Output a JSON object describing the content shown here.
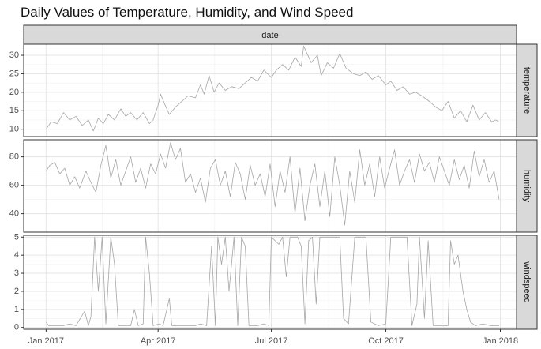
{
  "chart_data": {
    "type": "line",
    "title": "Daily Values of Temperature, Humidity, and Wind Speed",
    "facet_column_strip": "date",
    "grid": true,
    "line_color": "#a6a6a6",
    "strip_fill": "#d9d9d9",
    "x_ticks": [
      {
        "date": "2017-01-01",
        "label": "Jan 2017"
      },
      {
        "date": "2017-04-01",
        "label": "Apr 2017"
      },
      {
        "date": "2017-07-01",
        "label": "Jul 2017"
      },
      {
        "date": "2017-10-01",
        "label": "Oct 2017"
      },
      {
        "date": "2018-01-01",
        "label": "Jan 2018"
      }
    ],
    "x_range": [
      "2016-12-14",
      "2018-01-14"
    ],
    "panels": [
      {
        "strip": "temperature",
        "ylim": [
          8,
          33
        ],
        "yticks": [
          10,
          15,
          20,
          25,
          30
        ],
        "points": [
          [
            "2017-01-01",
            10.0
          ],
          [
            "2017-01-05",
            12.0
          ],
          [
            "2017-01-10",
            11.5
          ],
          [
            "2017-01-15",
            14.5
          ],
          [
            "2017-01-20",
            12.5
          ],
          [
            "2017-01-25",
            13.5
          ],
          [
            "2017-01-30",
            11.0
          ],
          [
            "2017-02-04",
            12.5
          ],
          [
            "2017-02-08",
            9.5
          ],
          [
            "2017-02-12",
            13.0
          ],
          [
            "2017-02-16",
            11.5
          ],
          [
            "2017-02-20",
            14.0
          ],
          [
            "2017-02-25",
            12.5
          ],
          [
            "2017-03-02",
            15.5
          ],
          [
            "2017-03-06",
            13.5
          ],
          [
            "2017-03-10",
            14.5
          ],
          [
            "2017-03-15",
            12.5
          ],
          [
            "2017-03-20",
            14.5
          ],
          [
            "2017-03-25",
            11.5
          ],
          [
            "2017-03-28",
            12.5
          ],
          [
            "2017-04-01",
            16.5
          ],
          [
            "2017-04-03",
            19.5
          ],
          [
            "2017-04-06",
            17.0
          ],
          [
            "2017-04-10",
            14.0
          ],
          [
            "2017-04-15",
            16.0
          ],
          [
            "2017-04-20",
            17.5
          ],
          [
            "2017-04-25",
            19.0
          ],
          [
            "2017-05-01",
            18.5
          ],
          [
            "2017-05-05",
            22.0
          ],
          [
            "2017-05-08",
            19.5
          ],
          [
            "2017-05-12",
            24.5
          ],
          [
            "2017-05-16",
            20.0
          ],
          [
            "2017-05-20",
            22.5
          ],
          [
            "2017-05-25",
            20.5
          ],
          [
            "2017-05-30",
            21.5
          ],
          [
            "2017-06-05",
            21.0
          ],
          [
            "2017-06-10",
            22.5
          ],
          [
            "2017-06-15",
            24.0
          ],
          [
            "2017-06-20",
            23.0
          ],
          [
            "2017-06-25",
            26.0
          ],
          [
            "2017-07-01",
            24.0
          ],
          [
            "2017-07-05",
            26.0
          ],
          [
            "2017-07-10",
            27.5
          ],
          [
            "2017-07-15",
            26.0
          ],
          [
            "2017-07-20",
            29.5
          ],
          [
            "2017-07-25",
            27.0
          ],
          [
            "2017-07-27",
            32.5
          ],
          [
            "2017-08-02",
            28.0
          ],
          [
            "2017-08-07",
            30.0
          ],
          [
            "2017-08-10",
            24.5
          ],
          [
            "2017-08-15",
            28.0
          ],
          [
            "2017-08-20",
            26.5
          ],
          [
            "2017-08-25",
            30.5
          ],
          [
            "2017-08-30",
            26.5
          ],
          [
            "2017-09-05",
            25.0
          ],
          [
            "2017-09-10",
            24.5
          ],
          [
            "2017-09-15",
            25.5
          ],
          [
            "2017-09-20",
            23.5
          ],
          [
            "2017-09-25",
            24.5
          ],
          [
            "2017-10-01",
            22.0
          ],
          [
            "2017-10-05",
            23.0
          ],
          [
            "2017-10-10",
            20.5
          ],
          [
            "2017-10-15",
            21.5
          ],
          [
            "2017-10-20",
            19.5
          ],
          [
            "2017-10-25",
            20.0
          ],
          [
            "2017-10-30",
            19.0
          ],
          [
            "2017-11-05",
            17.5
          ],
          [
            "2017-11-10",
            16.0
          ],
          [
            "2017-11-15",
            15.0
          ],
          [
            "2017-11-20",
            17.5
          ],
          [
            "2017-11-25",
            13.0
          ],
          [
            "2017-11-30",
            15.0
          ],
          [
            "2017-12-05",
            12.0
          ],
          [
            "2017-12-10",
            16.5
          ],
          [
            "2017-12-15",
            12.5
          ],
          [
            "2017-12-20",
            14.5
          ],
          [
            "2017-12-25",
            12.0
          ],
          [
            "2017-12-28",
            12.5
          ],
          [
            "2017-12-31",
            12.0
          ]
        ]
      },
      {
        "strip": "humidity",
        "ylim": [
          27,
          92
        ],
        "yticks": [
          40,
          60,
          80
        ],
        "points": [
          [
            "2017-01-01",
            70
          ],
          [
            "2017-01-04",
            74
          ],
          [
            "2017-01-08",
            76
          ],
          [
            "2017-01-12",
            68
          ],
          [
            "2017-01-16",
            72
          ],
          [
            "2017-01-20",
            60
          ],
          [
            "2017-01-24",
            66
          ],
          [
            "2017-01-28",
            58
          ],
          [
            "2017-02-02",
            70
          ],
          [
            "2017-02-06",
            62
          ],
          [
            "2017-02-10",
            55
          ],
          [
            "2017-02-14",
            74
          ],
          [
            "2017-02-18",
            88
          ],
          [
            "2017-02-22",
            65
          ],
          [
            "2017-02-26",
            78
          ],
          [
            "2017-03-02",
            60
          ],
          [
            "2017-03-06",
            70
          ],
          [
            "2017-03-10",
            80
          ],
          [
            "2017-03-14",
            62
          ],
          [
            "2017-03-18",
            72
          ],
          [
            "2017-03-22",
            58
          ],
          [
            "2017-03-26",
            75
          ],
          [
            "2017-03-30",
            68
          ],
          [
            "2017-04-03",
            82
          ],
          [
            "2017-04-07",
            72
          ],
          [
            "2017-04-11",
            90
          ],
          [
            "2017-04-15",
            78
          ],
          [
            "2017-04-19",
            86
          ],
          [
            "2017-04-23",
            62
          ],
          [
            "2017-04-27",
            68
          ],
          [
            "2017-05-01",
            55
          ],
          [
            "2017-05-05",
            65
          ],
          [
            "2017-05-09",
            48
          ],
          [
            "2017-05-13",
            72
          ],
          [
            "2017-05-17",
            78
          ],
          [
            "2017-05-21",
            60
          ],
          [
            "2017-05-25",
            70
          ],
          [
            "2017-05-29",
            52
          ],
          [
            "2017-06-02",
            76
          ],
          [
            "2017-06-06",
            68
          ],
          [
            "2017-06-10",
            50
          ],
          [
            "2017-06-14",
            74
          ],
          [
            "2017-06-18",
            60
          ],
          [
            "2017-06-22",
            68
          ],
          [
            "2017-06-26",
            52
          ],
          [
            "2017-06-30",
            75
          ],
          [
            "2017-07-04",
            45
          ],
          [
            "2017-07-08",
            70
          ],
          [
            "2017-07-12",
            55
          ],
          [
            "2017-07-16",
            80
          ],
          [
            "2017-07-20",
            40
          ],
          [
            "2017-07-24",
            72
          ],
          [
            "2017-07-28",
            35
          ],
          [
            "2017-08-01",
            60
          ],
          [
            "2017-08-05",
            75
          ],
          [
            "2017-08-09",
            45
          ],
          [
            "2017-08-13",
            70
          ],
          [
            "2017-08-17",
            38
          ],
          [
            "2017-08-21",
            80
          ],
          [
            "2017-08-25",
            60
          ],
          [
            "2017-08-29",
            32
          ],
          [
            "2017-09-02",
            70
          ],
          [
            "2017-09-06",
            48
          ],
          [
            "2017-09-10",
            85
          ],
          [
            "2017-09-14",
            60
          ],
          [
            "2017-09-18",
            75
          ],
          [
            "2017-09-22",
            52
          ],
          [
            "2017-09-26",
            80
          ],
          [
            "2017-09-30",
            58
          ],
          [
            "2017-10-04",
            72
          ],
          [
            "2017-10-08",
            85
          ],
          [
            "2017-10-12",
            60
          ],
          [
            "2017-10-16",
            70
          ],
          [
            "2017-10-20",
            78
          ],
          [
            "2017-10-24",
            62
          ],
          [
            "2017-10-28",
            82
          ],
          [
            "2017-11-01",
            70
          ],
          [
            "2017-11-05",
            76
          ],
          [
            "2017-11-09",
            62
          ],
          [
            "2017-11-13",
            80
          ],
          [
            "2017-11-17",
            70
          ],
          [
            "2017-11-21",
            60
          ],
          [
            "2017-11-25",
            78
          ],
          [
            "2017-11-29",
            64
          ],
          [
            "2017-12-03",
            74
          ],
          [
            "2017-12-07",
            58
          ],
          [
            "2017-12-11",
            84
          ],
          [
            "2017-12-15",
            66
          ],
          [
            "2017-12-19",
            78
          ],
          [
            "2017-12-23",
            62
          ],
          [
            "2017-12-27",
            70
          ],
          [
            "2017-12-31",
            50
          ]
        ]
      },
      {
        "strip": "windspeed",
        "ylim": [
          -0.1,
          5.1
        ],
        "yticks": [
          0,
          1,
          2,
          3,
          4,
          5
        ],
        "points": [
          [
            "2017-01-01",
            0.3
          ],
          [
            "2017-01-03",
            0.1
          ],
          [
            "2017-01-15",
            0.1
          ],
          [
            "2017-01-20",
            0.2
          ],
          [
            "2017-01-25",
            0.1
          ],
          [
            "2017-02-01",
            0.9
          ],
          [
            "2017-02-04",
            0.1
          ],
          [
            "2017-02-06",
            0.6
          ],
          [
            "2017-02-09",
            5.0
          ],
          [
            "2017-02-12",
            2.0
          ],
          [
            "2017-02-15",
            5.0
          ],
          [
            "2017-02-18",
            0.2
          ],
          [
            "2017-02-22",
            5.0
          ],
          [
            "2017-02-25",
            3.5
          ],
          [
            "2017-02-28",
            0.1
          ],
          [
            "2017-03-10",
            0.1
          ],
          [
            "2017-03-13",
            1.0
          ],
          [
            "2017-03-16",
            0.1
          ],
          [
            "2017-03-20",
            0.2
          ],
          [
            "2017-03-22",
            5.0
          ],
          [
            "2017-03-25",
            3.0
          ],
          [
            "2017-03-28",
            0.1
          ],
          [
            "2017-04-02",
            0.2
          ],
          [
            "2017-04-05",
            0.1
          ],
          [
            "2017-04-10",
            1.6
          ],
          [
            "2017-04-12",
            0.1
          ],
          [
            "2017-05-01",
            0.1
          ],
          [
            "2017-05-05",
            0.2
          ],
          [
            "2017-05-10",
            0.1
          ],
          [
            "2017-05-14",
            4.5
          ],
          [
            "2017-05-17",
            0.1
          ],
          [
            "2017-05-19",
            5.0
          ],
          [
            "2017-05-22",
            3.5
          ],
          [
            "2017-05-25",
            5.0
          ],
          [
            "2017-05-28",
            2.0
          ],
          [
            "2017-06-01",
            5.0
          ],
          [
            "2017-06-04",
            0.1
          ],
          [
            "2017-06-07",
            5.0
          ],
          [
            "2017-06-10",
            4.5
          ],
          [
            "2017-06-13",
            0.1
          ],
          [
            "2017-06-20",
            0.1
          ],
          [
            "2017-06-25",
            0.2
          ],
          [
            "2017-06-29",
            0.1
          ],
          [
            "2017-07-01",
            5.0
          ],
          [
            "2017-07-07",
            4.6
          ],
          [
            "2017-07-10",
            5.0
          ],
          [
            "2017-07-13",
            2.8
          ],
          [
            "2017-07-16",
            5.0
          ],
          [
            "2017-07-22",
            5.0
          ],
          [
            "2017-07-25",
            4.5
          ],
          [
            "2017-07-28",
            0.2
          ],
          [
            "2017-07-31",
            4.8
          ],
          [
            "2017-08-03",
            5.0
          ],
          [
            "2017-08-06",
            1.3
          ],
          [
            "2017-08-09",
            5.0
          ],
          [
            "2017-08-25",
            5.0
          ],
          [
            "2017-08-28",
            0.5
          ],
          [
            "2017-09-01",
            0.2
          ],
          [
            "2017-09-06",
            5.0
          ],
          [
            "2017-09-15",
            5.0
          ],
          [
            "2017-09-19",
            0.3
          ],
          [
            "2017-09-25",
            0.1
          ],
          [
            "2017-10-01",
            0.2
          ],
          [
            "2017-10-05",
            5.0
          ],
          [
            "2017-10-18",
            5.0
          ],
          [
            "2017-10-22",
            0.1
          ],
          [
            "2017-10-26",
            1.3
          ],
          [
            "2017-10-28",
            5.0
          ],
          [
            "2017-11-01",
            0.5
          ],
          [
            "2017-11-04",
            4.8
          ],
          [
            "2017-11-08",
            0.1
          ],
          [
            "2017-11-20",
            0.1
          ],
          [
            "2017-11-22",
            4.8
          ],
          [
            "2017-11-25",
            3.5
          ],
          [
            "2017-11-28",
            4.0
          ],
          [
            "2017-12-02",
            2.0
          ],
          [
            "2017-12-05",
            1.0
          ],
          [
            "2017-12-08",
            0.3
          ],
          [
            "2017-12-12",
            0.1
          ],
          [
            "2017-12-18",
            0.2
          ],
          [
            "2017-12-24",
            0.1
          ],
          [
            "2017-12-31",
            0.1
          ]
        ]
      }
    ]
  }
}
